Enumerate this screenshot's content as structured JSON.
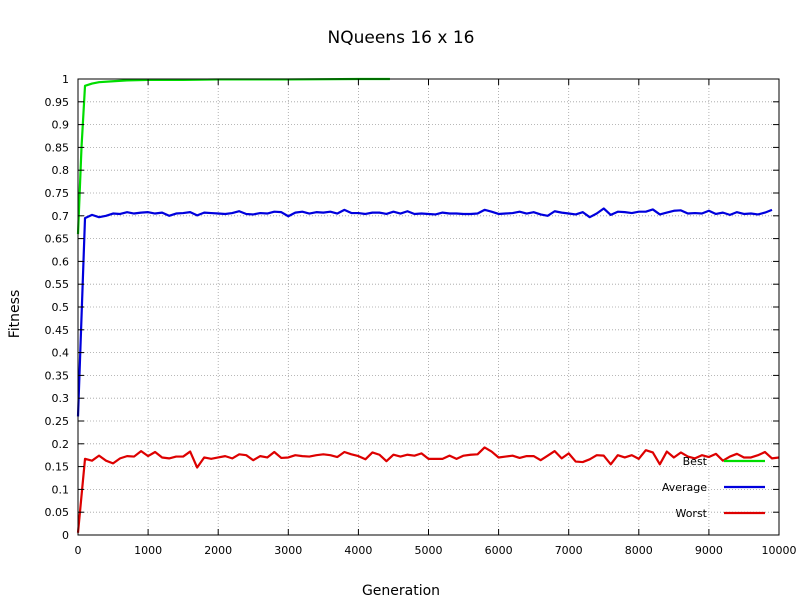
{
  "chart_data": {
    "type": "line",
    "title": "NQueens 16 x 16",
    "xlabel": "Generation",
    "ylabel": "Fitness",
    "xlim": [
      0,
      10000
    ],
    "ylim": [
      0,
      1
    ],
    "x_ticks": [
      "0",
      "1000",
      "2000",
      "3000",
      "4000",
      "5000",
      "6000",
      "7000",
      "8000",
      "9000",
      "10000"
    ],
    "y_ticks": [
      "0",
      "0.05",
      "0.1",
      "0.15",
      "0.2",
      "0.25",
      "0.3",
      "0.35",
      "0.4",
      "0.45",
      "0.5",
      "0.55",
      "0.6",
      "0.65",
      "0.7",
      "0.75",
      "0.8",
      "0.85",
      "0.9",
      "0.95",
      "1"
    ],
    "grid": true,
    "legend_position": "bottom-right",
    "series": [
      {
        "name": "Best",
        "color": "#00dd00",
        "x": [
          0,
          50,
          100,
          200,
          300,
          500,
          700,
          1000,
          1500,
          2000,
          3000,
          4000,
          4450
        ],
        "y": [
          0.66,
          0.85,
          0.985,
          0.99,
          0.993,
          0.995,
          0.997,
          0.998,
          0.998,
          0.999,
          0.999,
          1.0,
          1.0
        ]
      },
      {
        "name": "Average",
        "color": "#0000dd",
        "x": [
          0,
          100,
          200,
          300,
          400,
          500,
          600,
          700,
          800,
          900,
          1000,
          1100,
          1200,
          1300,
          1400,
          1500,
          1600,
          1700,
          1800,
          1900,
          2000,
          2100,
          2200,
          2300,
          2400,
          2500,
          2600,
          2700,
          2800,
          2900,
          3000,
          3100,
          3200,
          3300,
          3400,
          3500,
          3600,
          3700,
          3800,
          3900,
          4000,
          4100,
          4200,
          4300,
          4400,
          4500,
          4600,
          4700,
          4800,
          4900,
          5000,
          5100,
          5200,
          5300,
          5400,
          5500,
          5600,
          5700,
          5800,
          5900,
          6000,
          6100,
          6200,
          6300,
          6400,
          6500,
          6600,
          6700,
          6800,
          6900,
          7000,
          7100,
          7200,
          7300,
          7400,
          7500,
          7600,
          7700,
          7800,
          7900,
          8000,
          8100,
          8200,
          8300,
          8400,
          8500,
          8600,
          8700,
          8800,
          8900,
          9000,
          9100,
          9200,
          9300,
          9400,
          9500,
          9600,
          9700,
          9800,
          9900
        ],
        "y": [
          0.26,
          0.695,
          0.702,
          0.697,
          0.7,
          0.705,
          0.704,
          0.708,
          0.705,
          0.707,
          0.708,
          0.705,
          0.707,
          0.7,
          0.705,
          0.706,
          0.708,
          0.701,
          0.707,
          0.706,
          0.705,
          0.704,
          0.706,
          0.71,
          0.704,
          0.703,
          0.706,
          0.705,
          0.709,
          0.708,
          0.699,
          0.707,
          0.709,
          0.705,
          0.708,
          0.707,
          0.709,
          0.705,
          0.713,
          0.706,
          0.706,
          0.704,
          0.707,
          0.707,
          0.704,
          0.709,
          0.705,
          0.71,
          0.704,
          0.705,
          0.704,
          0.703,
          0.707,
          0.705,
          0.705,
          0.704,
          0.704,
          0.705,
          0.713,
          0.709,
          0.704,
          0.705,
          0.706,
          0.709,
          0.705,
          0.708,
          0.703,
          0.7,
          0.71,
          0.707,
          0.705,
          0.703,
          0.708,
          0.697,
          0.705,
          0.716,
          0.702,
          0.709,
          0.708,
          0.706,
          0.709,
          0.709,
          0.714,
          0.703,
          0.707,
          0.711,
          0.712,
          0.705,
          0.706,
          0.705,
          0.711,
          0.704,
          0.707,
          0.702,
          0.708,
          0.704,
          0.705,
          0.703,
          0.707,
          0.713
        ]
      },
      {
        "name": "Worst",
        "color": "#dd0000",
        "x": [
          0,
          100,
          200,
          300,
          400,
          500,
          600,
          700,
          800,
          900,
          1000,
          1100,
          1200,
          1300,
          1400,
          1500,
          1600,
          1700,
          1800,
          1900,
          2000,
          2100,
          2200,
          2300,
          2400,
          2500,
          2600,
          2700,
          2800,
          2900,
          3000,
          3100,
          3200,
          3300,
          3400,
          3500,
          3600,
          3700,
          3800,
          3900,
          4000,
          4100,
          4200,
          4300,
          4400,
          4500,
          4600,
          4700,
          4800,
          4900,
          5000,
          5100,
          5200,
          5300,
          5400,
          5500,
          5600,
          5700,
          5800,
          5900,
          6000,
          6100,
          6200,
          6300,
          6400,
          6500,
          6600,
          6700,
          6800,
          6900,
          7000,
          7100,
          7200,
          7300,
          7400,
          7500,
          7600,
          7700,
          7800,
          7900,
          8000,
          8100,
          8200,
          8300,
          8400,
          8500,
          8600,
          8700,
          8800,
          8900,
          9000,
          9100,
          9200,
          9300,
          9400,
          9500,
          9600,
          9700,
          9800,
          9900,
          10000
        ],
        "y": [
          0.005,
          0.167,
          0.163,
          0.174,
          0.163,
          0.157,
          0.168,
          0.173,
          0.172,
          0.184,
          0.173,
          0.182,
          0.17,
          0.168,
          0.172,
          0.172,
          0.183,
          0.148,
          0.17,
          0.167,
          0.17,
          0.173,
          0.168,
          0.177,
          0.175,
          0.164,
          0.173,
          0.17,
          0.182,
          0.169,
          0.17,
          0.175,
          0.173,
          0.172,
          0.175,
          0.177,
          0.175,
          0.171,
          0.182,
          0.177,
          0.173,
          0.166,
          0.181,
          0.176,
          0.162,
          0.176,
          0.172,
          0.176,
          0.174,
          0.179,
          0.167,
          0.167,
          0.167,
          0.174,
          0.167,
          0.174,
          0.176,
          0.177,
          0.192,
          0.183,
          0.17,
          0.172,
          0.174,
          0.169,
          0.173,
          0.173,
          0.164,
          0.174,
          0.184,
          0.168,
          0.179,
          0.161,
          0.16,
          0.166,
          0.175,
          0.174,
          0.155,
          0.175,
          0.17,
          0.175,
          0.167,
          0.186,
          0.181,
          0.155,
          0.183,
          0.17,
          0.181,
          0.172,
          0.168,
          0.175,
          0.171,
          0.178,
          0.163,
          0.172,
          0.178,
          0.17,
          0.17,
          0.175,
          0.182,
          0.168,
          0.17
        ]
      }
    ]
  }
}
